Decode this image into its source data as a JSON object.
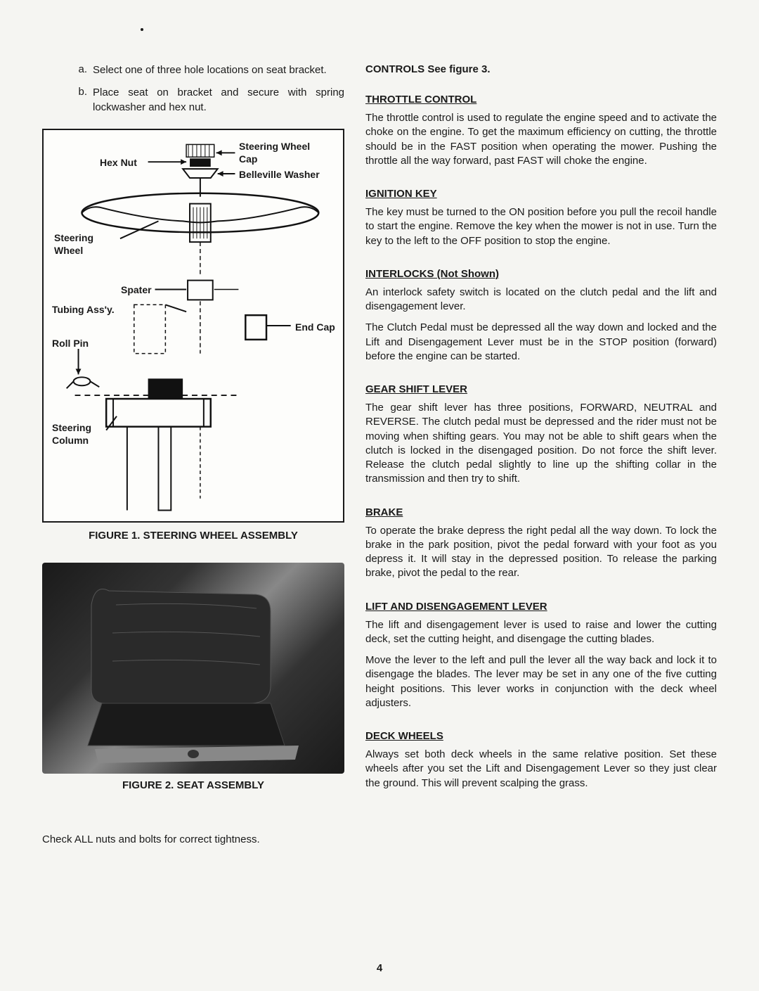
{
  "leftColumn": {
    "listItems": [
      {
        "marker": "a.",
        "text": "Select one of three hole locations on seat bracket."
      },
      {
        "marker": "b.",
        "text": "Place seat on bracket and secure with spring lockwasher and hex nut."
      }
    ],
    "figure1": {
      "caption": "FIGURE 1. STEERING WHEEL ASSEMBLY",
      "labels": {
        "hexNut": "Hex Nut",
        "steeringWheelCap": "Steering Wheel",
        "cap": "Cap",
        "belleville": "Belleville Washer",
        "steeringWheel": "Steering",
        "wheel": "Wheel",
        "spater": "Spater",
        "tubingAssy": "Tubing Ass'y.",
        "endCap": "End Cap",
        "rollPin": "Roll Pin",
        "steeringColumn": "Steering",
        "column": "Column"
      }
    },
    "figure2": {
      "caption": "FIGURE 2. SEAT ASSEMBLY"
    },
    "checkNote": "Check ALL nuts and bolts for correct tightness."
  },
  "rightColumn": {
    "controlsHeading": "CONTROLS See figure 3.",
    "sections": [
      {
        "title": "THROTTLE CONTROL",
        "underline": true,
        "paragraphs": [
          "The throttle control is used to regulate the engine speed and to activate the choke on the engine. To get the maximum efficiency on cutting, the throttle should be in the FAST position when operating the mower. Pushing the throttle all the way forward, past FAST will choke the engine."
        ]
      },
      {
        "title": "IGNITION KEY",
        "underline": true,
        "paragraphs": [
          "The key must be turned to the ON position before you pull the recoil handle to start the engine. Remove the key when the mower is not in use. Turn the key to the left to the OFF position to stop the engine."
        ]
      },
      {
        "title": "INTERLOCKS (Not Shown)",
        "underline": true,
        "paragraphs": [
          "An interlock safety switch is located on the clutch pedal and the lift and disengagement lever.",
          "The Clutch Pedal must be depressed all the way down and locked and the Lift and Disengagement Lever must be in the STOP position (forward) before the engine can be started."
        ]
      },
      {
        "title": "GEAR SHIFT LEVER",
        "underline": true,
        "paragraphs": [
          "The gear shift lever has three positions, FORWARD, NEUTRAL and REVERSE. The clutch pedal must be depressed and the rider must not be moving when shifting gears. You may not be able to shift gears when the clutch is locked in the disengaged position. Do not force the shift lever. Release the clutch pedal slightly to line up the shifting collar in the transmission and then try to shift."
        ]
      },
      {
        "title": "BRAKE",
        "underline": true,
        "paragraphs": [
          "To operate the brake depress the right pedal all the way down. To lock the brake in the park position, pivot the pedal forward with your foot as you depress it. It will stay in the depressed position. To release the parking brake, pivot the pedal to the rear."
        ]
      },
      {
        "title": "LIFT AND DISENGAGEMENT LEVER",
        "underline": true,
        "paragraphs": [
          "The lift and disengagement lever is used to raise and lower the cutting deck, set the cutting height, and disengage the cutting blades.",
          "Move the lever to the left and pull the lever all the way back and lock it to disengage the blades. The lever may be set in any one of the five cutting height positions. This lever works in conjunction with the deck wheel adjusters."
        ]
      },
      {
        "title": "DECK WHEELS",
        "underline": true,
        "paragraphs": [
          "Always set both deck wheels in the same relative position. Set these wheels after you set the Lift and Disengagement Lever so they just clear the ground. This will prevent scalping the grass."
        ]
      }
    ]
  },
  "pageNumber": "4"
}
